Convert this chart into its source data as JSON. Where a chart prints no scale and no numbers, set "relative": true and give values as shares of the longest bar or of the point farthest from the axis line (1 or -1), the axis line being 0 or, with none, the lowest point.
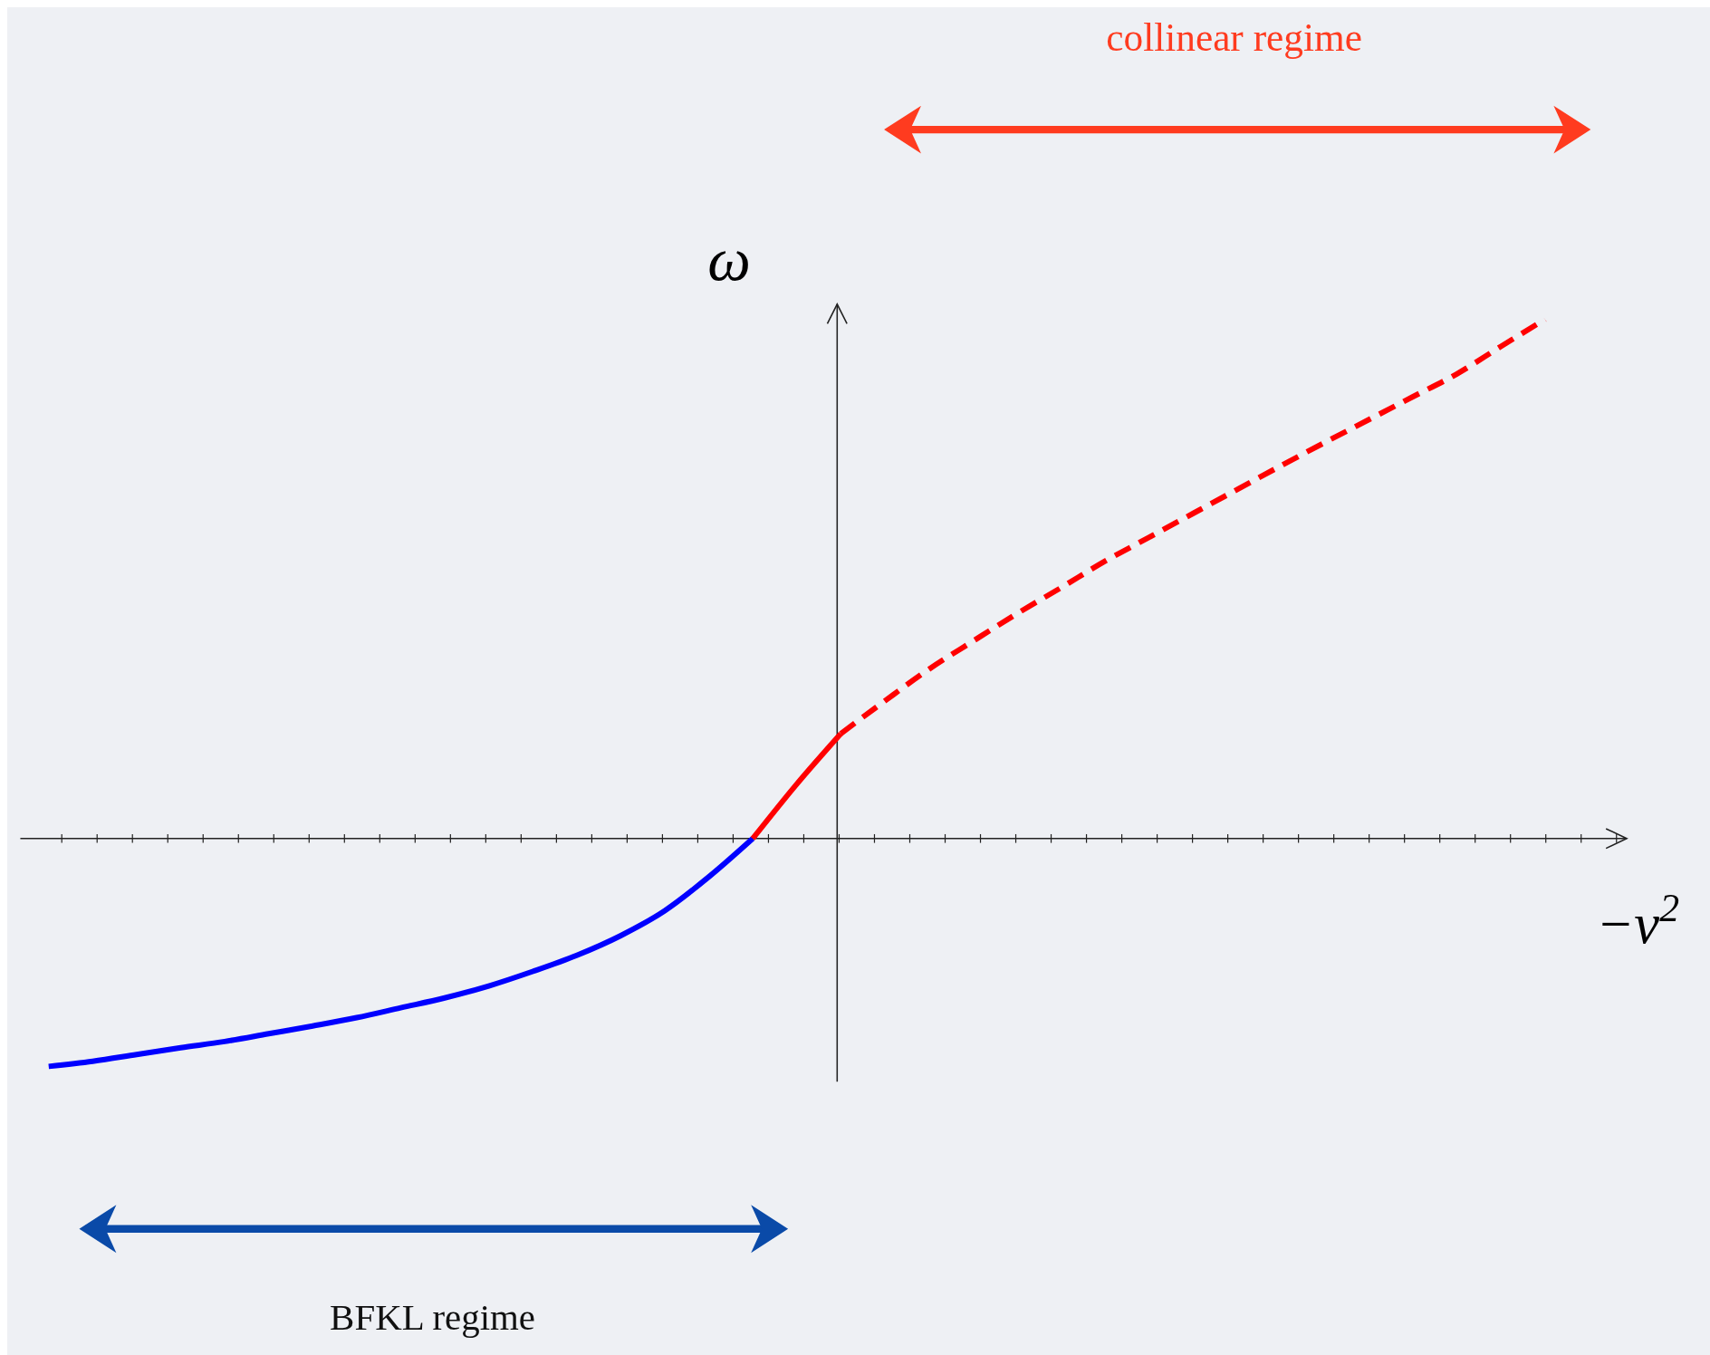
{
  "chart_data": {
    "type": "line",
    "relative": true,
    "xlabel": "−ν$^{2}$",
    "ylabel": "ω",
    "categories": [
      null,
      null,
      null,
      null,
      null,
      null,
      null,
      null,
      null,
      null,
      null,
      null,
      null,
      null,
      null,
      null,
      null,
      null,
      null,
      null,
      null,
      null,
      null,
      null,
      null,
      null,
      null,
      null,
      null,
      null,
      null,
      null,
      null,
      null,
      null
    ],
    "series": [
      {
        "color": "#0000ff",
        "line_style": "solid",
        "values": [
          -0.439,
          -0.429,
          -0.416,
          -0.403,
          -0.391,
          -0.376,
          -0.361,
          -0.345,
          -0.326,
          -0.307,
          -0.284,
          -0.256,
          -0.225,
          -0.187,
          -0.139,
          -0.074,
          0,
          null,
          null,
          null,
          null,
          null,
          null,
          null,
          null,
          null,
          null,
          null,
          null,
          null,
          null,
          null,
          null,
          null,
          null
        ]
      },
      {
        "color": "#ff0000",
        "line_style": "solid",
        "values": [
          null,
          null,
          null,
          null,
          null,
          null,
          null,
          null,
          null,
          null,
          null,
          null,
          null,
          null,
          null,
          null,
          0,
          0.105,
          0.202,
          null,
          null,
          null,
          null,
          null,
          null,
          null,
          null,
          null,
          null,
          null,
          null,
          null,
          null,
          null,
          null
        ]
      },
      {
        "color": "#ff0000",
        "line_style": "dashed",
        "values": [
          null,
          null,
          null,
          null,
          null,
          null,
          null,
          null,
          null,
          null,
          null,
          null,
          null,
          null,
          null,
          null,
          null,
          null,
          0.202,
          0.265,
          0.326,
          0.38,
          0.433,
          0.483,
          0.534,
          0.58,
          0.626,
          0.672,
          0.718,
          0.763,
          0.807,
          0.851,
          0.895,
          0.948,
          1
        ]
      }
    ],
    "annotations": [
      "collinear regime",
      "BFKL regime"
    ],
    "grid": false
  }
}
